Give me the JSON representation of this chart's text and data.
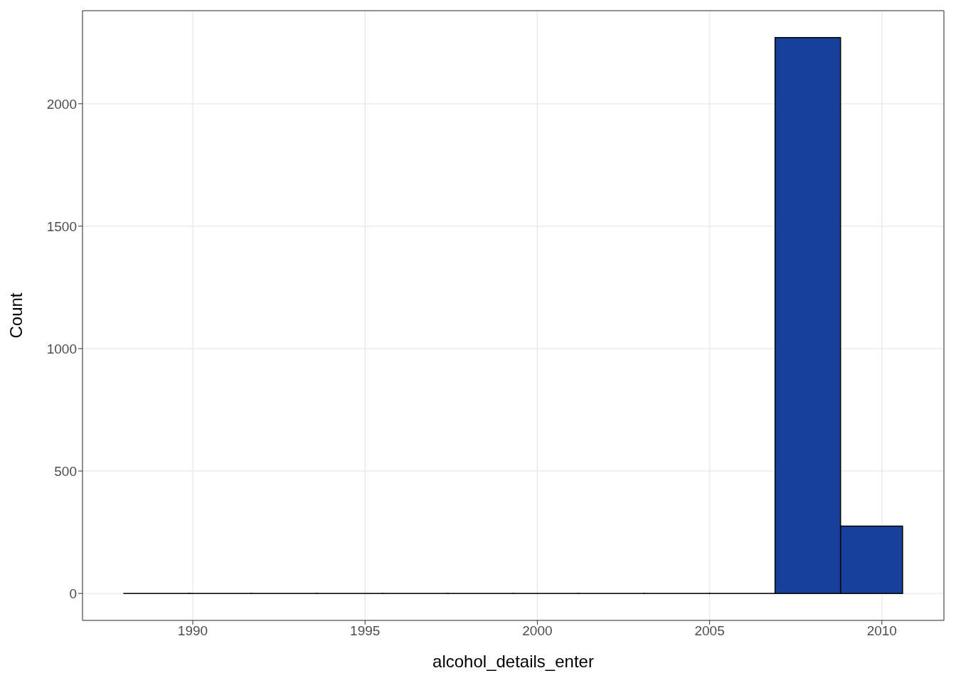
{
  "chart_data": {
    "type": "histogram",
    "xlabel": "alcohol_details_enter",
    "ylabel": "Count",
    "bins": [
      1988.0,
      1989.9,
      1991.7,
      1993.6,
      1995.5,
      1997.4,
      1999.3,
      2001.2,
      2003.1,
      2005.0,
      2006.9,
      2008.8,
      2010.6
    ],
    "values": [
      0,
      0,
      0,
      0,
      0,
      0,
      0,
      0,
      0,
      0,
      2270,
      275
    ],
    "color": "#17409a",
    "xlim": [
      1986.8,
      2011.8
    ],
    "xticks": [
      1990,
      1995,
      2000,
      2005,
      2010
    ],
    "ylim": [
      -110,
      2380
    ],
    "yticks": [
      0,
      500,
      1000,
      1500,
      2000
    ],
    "grid": true
  }
}
